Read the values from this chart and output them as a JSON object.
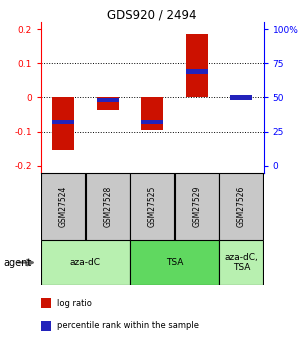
{
  "title": "GDS920 / 2494",
  "samples": [
    "GSM27524",
    "GSM27528",
    "GSM27525",
    "GSM27529",
    "GSM27526"
  ],
  "log_ratios": [
    -0.155,
    -0.038,
    -0.095,
    0.185,
    0.0
  ],
  "percentile_ranks": [
    0.32,
    0.48,
    0.32,
    0.69,
    0.5
  ],
  "ylim": [
    -0.22,
    0.22
  ],
  "yticks_left": [
    -0.2,
    -0.1,
    0.0,
    0.1,
    0.2
  ],
  "yticks_left_labels": [
    "-0.2",
    "-0.1",
    "0",
    "0.1",
    "0.2"
  ],
  "yticks_right": [
    0,
    25,
    50,
    75,
    100
  ],
  "yticks_right_labels": [
    "0",
    "25",
    "50",
    "75",
    "100%"
  ],
  "yticks_right_vals": [
    -0.2,
    -0.1,
    0.0,
    0.1,
    0.2
  ],
  "dotted_lines": [
    -0.1,
    0.0,
    0.1
  ],
  "agents": [
    {
      "label": "aza-dC",
      "samples": [
        0,
        1
      ],
      "color": "#b8f0b0"
    },
    {
      "label": "TSA",
      "samples": [
        2,
        3
      ],
      "color": "#60d860"
    },
    {
      "label": "aza-dC,\nTSA",
      "samples": [
        4
      ],
      "color": "#b8f0b0"
    }
  ],
  "bar_color": "#cc1100",
  "blue_color": "#2222bb",
  "bar_width": 0.5,
  "sample_box_color": "#c8c8c8",
  "legend_items": [
    {
      "color": "#cc1100",
      "label": "log ratio"
    },
    {
      "color": "#2222bb",
      "label": "percentile rank within the sample"
    }
  ],
  "agent_label": "agent"
}
